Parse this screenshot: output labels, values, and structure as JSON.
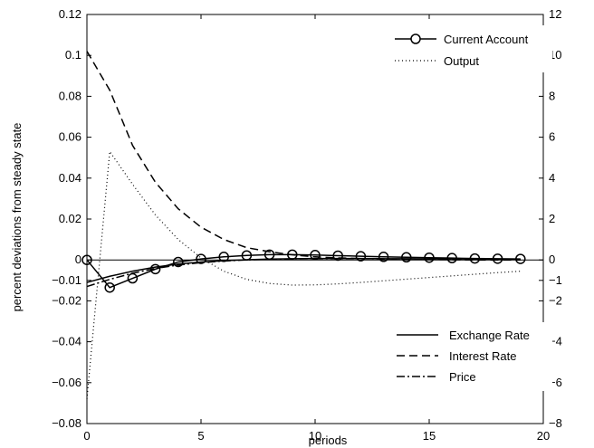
{
  "chart_data": {
    "type": "line",
    "title": "",
    "xlabel": "periods",
    "ylabel": "percent deviations from steady state",
    "xlim": [
      0,
      20
    ],
    "ylim_left": [
      -0.08,
      0.12
    ],
    "ylim_right": [
      -8,
      12
    ],
    "grid": false,
    "x_ticks": [
      "0",
      "5",
      "10",
      "15",
      "20"
    ],
    "y_ticks_left": [
      "−0.08",
      "−0.06",
      "−0.04",
      "−0.02",
      "−0.01",
      "0",
      "0.02",
      "0.04",
      "0.06",
      "0.08",
      "0.1",
      "0.12"
    ],
    "y_ticks_left_values": [
      -0.08,
      -0.06,
      -0.04,
      -0.02,
      -0.01,
      0,
      0.02,
      0.04,
      0.06,
      0.08,
      0.1,
      0.12
    ],
    "y_ticks_right": [
      "−8",
      "−6",
      "−4",
      "−2",
      "−1",
      "0",
      "2",
      "4",
      "6",
      "8",
      "10",
      "12"
    ],
    "y_ticks_right_values": [
      -8,
      -6,
      -4,
      -2,
      -1,
      0,
      2,
      4,
      6,
      8,
      10,
      12
    ],
    "legend_top": {
      "placement": "top-right",
      "entries": [
        "Current Account",
        "Output"
      ]
    },
    "legend_bottom": {
      "placement": "bottom-right",
      "entries": [
        "Exchange Rate",
        "Interest Rate",
        "Price"
      ]
    },
    "series": [
      {
        "name": "Current Account",
        "axis": "left",
        "style": "solid-circle",
        "x": [
          0,
          1,
          2,
          3,
          4,
          5,
          6,
          7,
          8,
          9,
          10,
          11,
          12,
          13,
          14,
          15,
          16,
          17,
          18,
          19
        ],
        "y": [
          0,
          -0.0135,
          -0.009,
          -0.0045,
          -0.001,
          0.0005,
          0.0015,
          0.0022,
          0.0026,
          0.0026,
          0.0024,
          0.0021,
          0.0018,
          0.0015,
          0.0013,
          0.0011,
          0.0009,
          0.0007,
          0.0006,
          0.0005
        ]
      },
      {
        "name": "Output",
        "axis": "left",
        "style": "dotted",
        "x": [
          0,
          1,
          2,
          3,
          4,
          5,
          6,
          7,
          8,
          9,
          10,
          11,
          12,
          13,
          14,
          15,
          16,
          17,
          18,
          19
        ],
        "y": [
          -0.068,
          0.053,
          0.037,
          0.022,
          0.01,
          0.001,
          -0.0055,
          -0.0095,
          -0.0115,
          -0.0123,
          -0.0122,
          -0.0117,
          -0.011,
          -0.0102,
          -0.0094,
          -0.0086,
          -0.0078,
          -0.007,
          -0.0062,
          -0.0055
        ]
      },
      {
        "name": "Exchange Rate",
        "axis": "left",
        "style": "solid",
        "x": [
          0,
          1,
          2,
          3,
          4,
          5,
          6,
          7,
          8,
          9,
          10,
          11,
          12,
          13,
          14,
          15,
          16,
          17,
          18,
          19
        ],
        "y": [
          -0.011,
          -0.008,
          -0.0055,
          -0.0035,
          -0.002,
          -0.001,
          -0.0004,
          0.0001,
          0.0004,
          0.0006,
          0.0007,
          0.0007,
          0.0007,
          0.0006,
          0.0006,
          0.0005,
          0.0005,
          0.0004,
          0.0004,
          0.0003
        ]
      },
      {
        "name": "Interest Rate",
        "axis": "right",
        "style": "dashed",
        "x": [
          0,
          1,
          2,
          3,
          4,
          5,
          6,
          7,
          8,
          9,
          10,
          11,
          12,
          13,
          14,
          15,
          16,
          17,
          18,
          19
        ],
        "y": [
          10.2,
          8.3,
          5.6,
          3.8,
          2.5,
          1.6,
          1.0,
          0.6,
          0.4,
          0.25,
          0.15,
          0.1,
          0.07,
          0.05,
          0.03,
          0.02,
          0.01,
          0.0,
          0.0,
          0.0
        ]
      },
      {
        "name": "Price",
        "axis": "left",
        "style": "dashdot",
        "x": [
          0,
          1,
          2,
          3,
          4,
          5,
          6,
          7,
          8,
          9,
          10,
          11,
          12,
          13,
          14,
          15,
          16,
          17,
          18,
          19
        ],
        "y": [
          -0.013,
          -0.0095,
          -0.0065,
          -0.0042,
          -0.0025,
          -0.0013,
          -0.0005,
          0.0,
          0.0003,
          0.0005,
          0.0006,
          0.0006,
          0.0006,
          0.0005,
          0.0005,
          0.0004,
          0.0004,
          0.0003,
          0.0003,
          0.0003
        ]
      }
    ]
  }
}
